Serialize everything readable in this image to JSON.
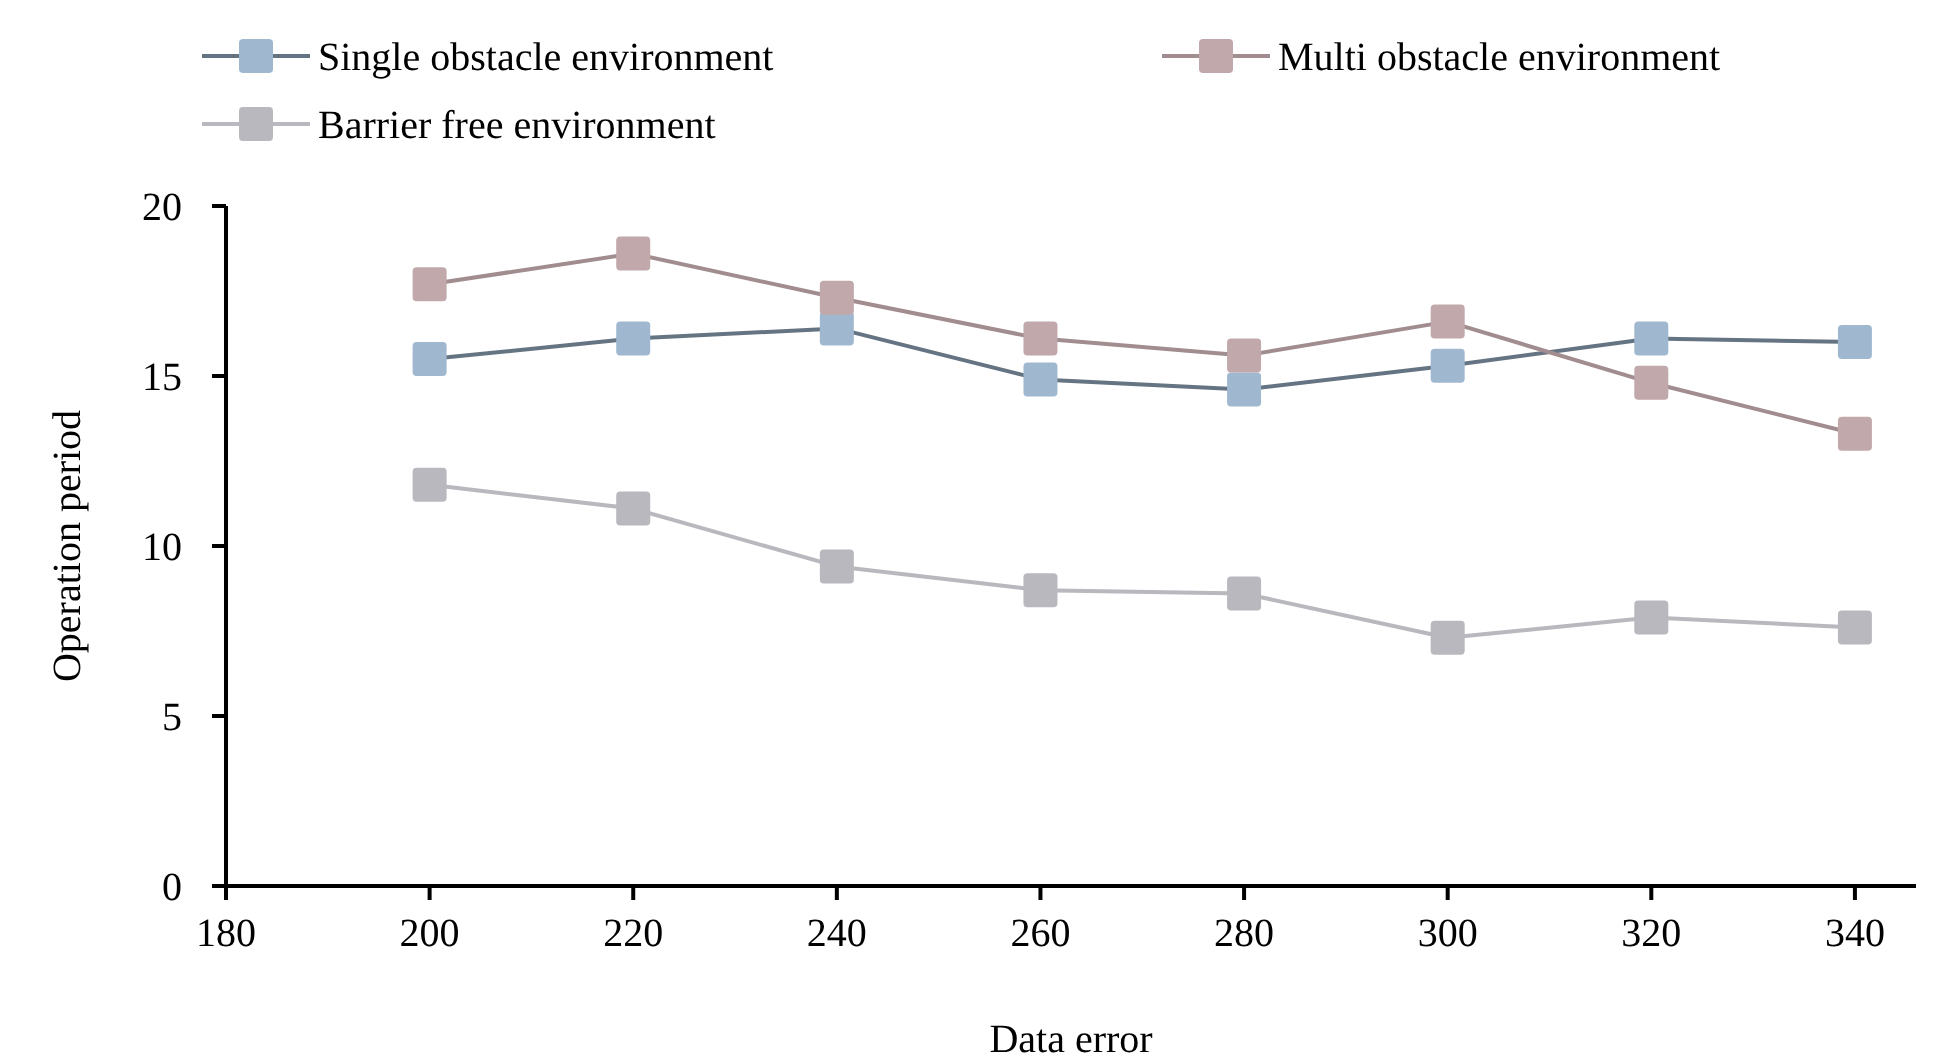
{
  "chart_data": {
    "type": "line",
    "xlabel": "Data error",
    "ylabel": "Operation period",
    "x": [
      200,
      220,
      240,
      260,
      280,
      300,
      320,
      340
    ],
    "xlim": [
      180,
      346
    ],
    "xticks": [
      180,
      200,
      220,
      240,
      260,
      280,
      300,
      320,
      340
    ],
    "ylim": [
      0,
      20
    ],
    "yticks": [
      0,
      5,
      10,
      15,
      20
    ],
    "marker": "square",
    "legend": "top",
    "grid": false,
    "series": [
      {
        "name": "Single obstacle environment",
        "color": "#a0b8cf",
        "values": [
          15.5,
          16.1,
          16.4,
          14.9,
          14.6,
          15.3,
          16.1,
          16.0
        ]
      },
      {
        "name": "Multi obstacle environment",
        "color": "#c0a8ab",
        "values": [
          17.7,
          18.6,
          17.3,
          16.1,
          15.6,
          16.6,
          14.8,
          13.3
        ]
      },
      {
        "name": "Barrier free environment",
        "color": "#b8b8be",
        "values": [
          11.8,
          11.1,
          9.4,
          8.7,
          8.6,
          7.3,
          7.9,
          7.6
        ]
      }
    ]
  }
}
